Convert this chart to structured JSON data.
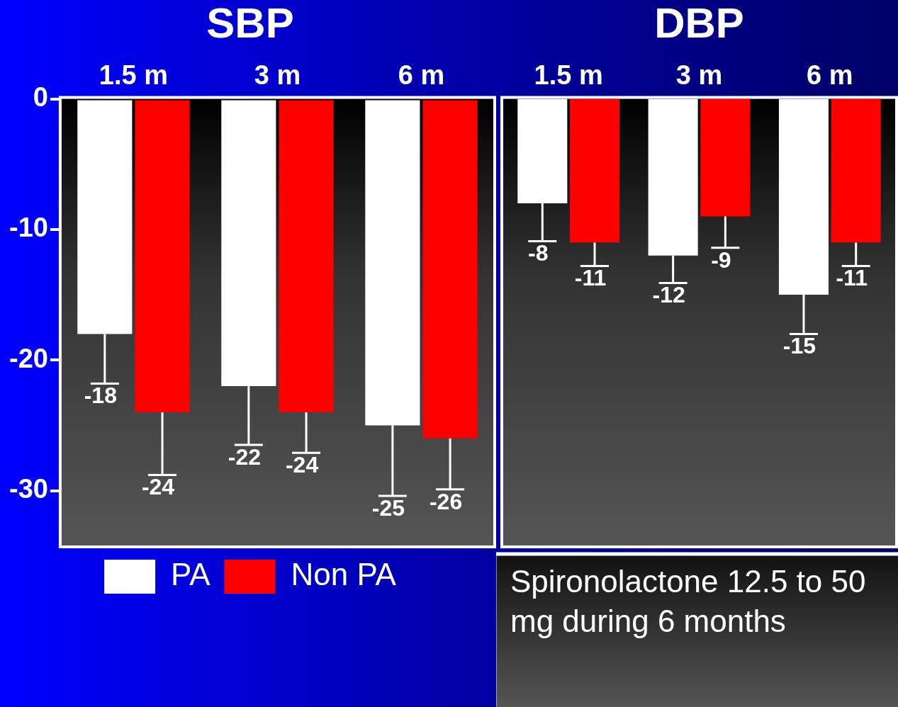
{
  "chart_data": [
    {
      "type": "bar",
      "title": "SBP",
      "categories": [
        "1.5 m",
        "3 m",
        "6 m"
      ],
      "ylim": [
        -34.2,
        0
      ],
      "yticks": [
        0,
        -10,
        -20,
        -30
      ],
      "legend": "bottom",
      "grid": false,
      "series": [
        {
          "name": "PA",
          "color": "#ffffff",
          "values": [
            -18,
            -22,
            -25
          ],
          "errors": [
            [
              -21.8,
              -18
            ],
            [
              -26.5,
              -22
            ],
            [
              -30.4,
              -25
            ]
          ],
          "value_labels": [
            "-18",
            "-22",
            "-25"
          ]
        },
        {
          "name": "Non PA",
          "color": "#ff0000",
          "values": [
            -24,
            -24,
            -26
          ],
          "errors": [
            [
              -28.8,
              -24
            ],
            [
              -27.1,
              -24
            ],
            [
              -29.9,
              -26
            ]
          ],
          "value_labels": [
            "-24",
            "-24",
            "-26"
          ]
        }
      ]
    },
    {
      "type": "bar",
      "title": "DBP",
      "categories": [
        "1.5 m",
        "3 m",
        "6 m"
      ],
      "ylim": [
        -34.2,
        0
      ],
      "yticks": [
        0,
        -10,
        -20,
        -30
      ],
      "tick_labels": "x",
      "grid": false,
      "annotations": [
        "Spironolactone 12.5 to 50 mg during 6 months"
      ],
      "series": [
        {
          "color": "#ffffff",
          "values": [
            -8,
            -12,
            -15
          ],
          "errors": [
            [
              -10.9,
              -8
            ],
            [
              -14.1,
              -12
            ],
            [
              -18.0,
              -15
            ]
          ],
          "value_labels": [
            "-8",
            "-12",
            "-15"
          ]
        },
        {
          "color": "#ff0000",
          "values": [
            -11,
            -9,
            -11
          ],
          "errors": [
            [
              -12.8,
              -11
            ],
            [
              -11.4,
              -9
            ],
            [
              -12.8,
              -11
            ]
          ],
          "value_labels": [
            "-11",
            "-9",
            "-11"
          ]
        }
      ]
    }
  ]
}
